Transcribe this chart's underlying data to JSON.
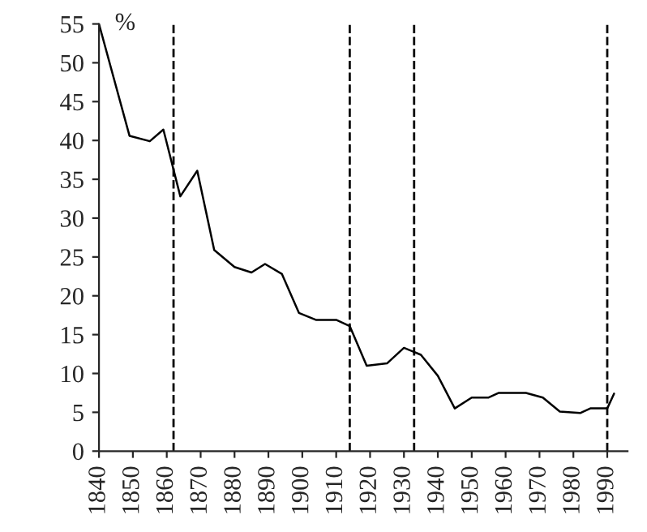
{
  "chart_data": {
    "type": "line",
    "x": [
      1840,
      1849,
      1855,
      1859,
      1864,
      1869,
      1874,
      1880,
      1885,
      1889,
      1894,
      1899,
      1904,
      1910,
      1914,
      1919,
      1925,
      1930,
      1935,
      1940,
      1945,
      1950,
      1955,
      1958,
      1966,
      1971,
      1976,
      1982,
      1985,
      1990,
      1992
    ],
    "series": [
      {
        "color": "#000000",
        "values": [
          55,
          40.6,
          39.9,
          41.4,
          32.8,
          36.1,
          25.9,
          23.7,
          23.0,
          24.1,
          22.8,
          17.8,
          16.9,
          16.9,
          16.1,
          11.0,
          11.3,
          13.3,
          12.4,
          9.7,
          5.5,
          6.9,
          6.9,
          7.5,
          7.5,
          6.9,
          5.1,
          4.9,
          5.5,
          5.5,
          7.4
        ]
      }
    ],
    "xlim": [
      1840,
      1996
    ],
    "xticks": [
      1840,
      1850,
      1860,
      1870,
      1880,
      1890,
      1900,
      1910,
      1920,
      1930,
      1940,
      1950,
      1960,
      1970,
      1980,
      1990
    ],
    "ylim": [
      0,
      55
    ],
    "yticks": [
      0,
      5,
      10,
      15,
      20,
      25,
      30,
      35,
      40,
      45,
      50,
      55
    ],
    "ylabel": "%",
    "ref_lines": [
      {
        "axis": "x",
        "value": 1862,
        "color": "#000000",
        "line_style": "dashed"
      },
      {
        "axis": "x",
        "value": 1914,
        "color": "#000000",
        "line_style": "dashed"
      },
      {
        "axis": "x",
        "value": 1933,
        "color": "#000000",
        "line_style": "dashed"
      },
      {
        "axis": "x",
        "value": 1990,
        "color": "#000000",
        "line_style": "dashed"
      }
    ],
    "grid": false,
    "legend": false,
    "marker": "none",
    "line_style": "solid"
  }
}
